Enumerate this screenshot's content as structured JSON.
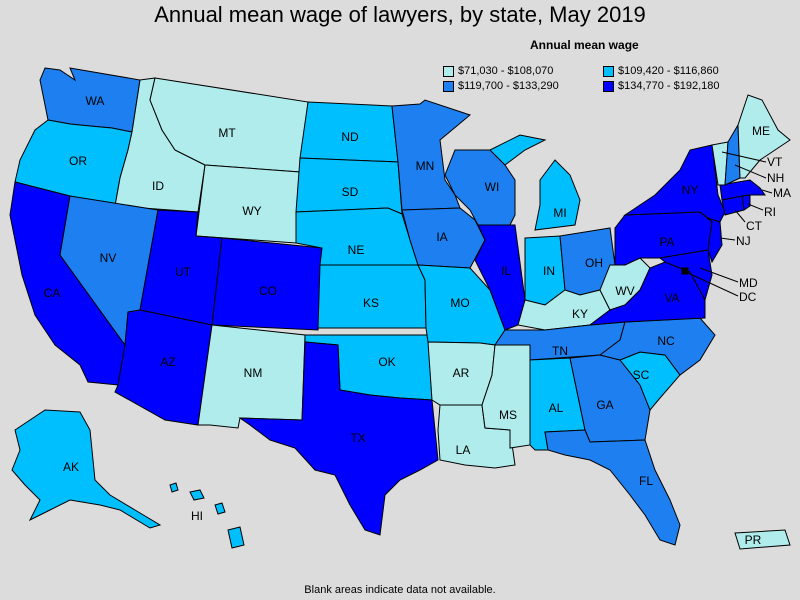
{
  "title": "Annual mean wage of lawyers, by state, May 2019",
  "footnote": "Blank areas indicate data not available.",
  "legend": {
    "title": "Annual mean wage",
    "items": [
      {
        "label": "$71,030 - $108,070",
        "color": "#b0ecec"
      },
      {
        "label": "$109,420 - $116,860",
        "color": "#00bfff"
      },
      {
        "label": "$119,700 - $133,290",
        "color": "#1e7ff0"
      },
      {
        "label": "$134,770 - $192,180",
        "color": "#0000ff"
      }
    ]
  },
  "states": {
    "WA": "WA",
    "OR": "OR",
    "CA": "CA",
    "ID": "ID",
    "NV": "NV",
    "MT": "MT",
    "WY": "WY",
    "UT": "UT",
    "CO": "CO",
    "AZ": "AZ",
    "NM": "NM",
    "ND": "ND",
    "SD": "SD",
    "NE": "NE",
    "KS": "KS",
    "OK": "OK",
    "TX": "TX",
    "MN": "MN",
    "IA": "IA",
    "MO": "MO",
    "AR": "AR",
    "LA": "LA",
    "WI": "WI",
    "IL": "IL",
    "MS": "MS",
    "MI": "MI",
    "IN": "IN",
    "KY": "KY",
    "TN": "TN",
    "AL": "AL",
    "OH": "OH",
    "WV": "WV",
    "GA": "GA",
    "FL": "FL",
    "SC": "SC",
    "NC": "NC",
    "VA": "VA",
    "PA": "PA",
    "NY": "NY",
    "ME": "ME",
    "VT": "VT",
    "NH": "NH",
    "MA": "MA",
    "RI": "RI",
    "CT": "CT",
    "NJ": "NJ",
    "MD": "MD",
    "DC": "DC",
    "AK": "AK",
    "HI": "HI",
    "PR": "PR"
  }
}
